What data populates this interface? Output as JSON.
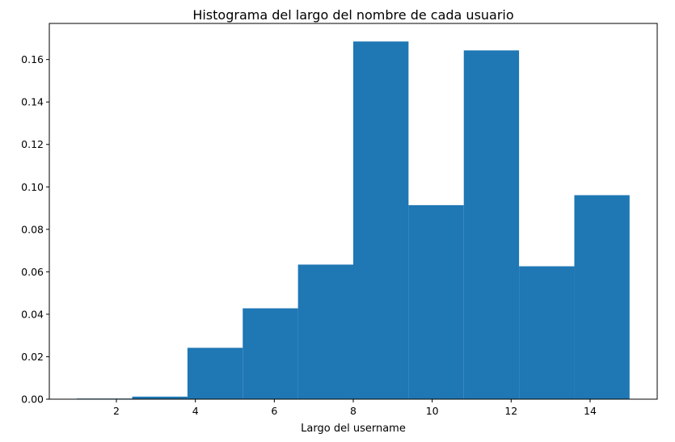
{
  "chart_data": {
    "type": "bar",
    "title": "Histograma del largo del nombre de cada usuario",
    "xlabel": "Largo del username",
    "ylabel": "",
    "bin_edges": [
      1.0,
      2.4,
      3.8,
      5.2,
      6.6,
      8.0,
      9.4,
      10.8,
      12.2,
      13.6,
      15.0
    ],
    "values": [
      0.0003,
      0.0012,
      0.0242,
      0.0428,
      0.0634,
      0.1685,
      0.0914,
      0.1643,
      0.0626,
      0.0961
    ],
    "xlim": [
      0.3,
      15.7
    ],
    "ylim": [
      0,
      0.177
    ],
    "xticks": [
      2,
      4,
      6,
      8,
      10,
      12,
      14
    ],
    "xtick_labels": [
      "2",
      "4",
      "6",
      "8",
      "10",
      "12",
      "14"
    ],
    "yticks": [
      0.0,
      0.02,
      0.04,
      0.06,
      0.08,
      0.1,
      0.12,
      0.14,
      0.16
    ],
    "ytick_labels": [
      "0.00",
      "0.02",
      "0.04",
      "0.06",
      "0.08",
      "0.10",
      "0.12",
      "0.14",
      "0.16"
    ],
    "bar_color": "#1f77b4",
    "grid": false,
    "legend": "none"
  }
}
